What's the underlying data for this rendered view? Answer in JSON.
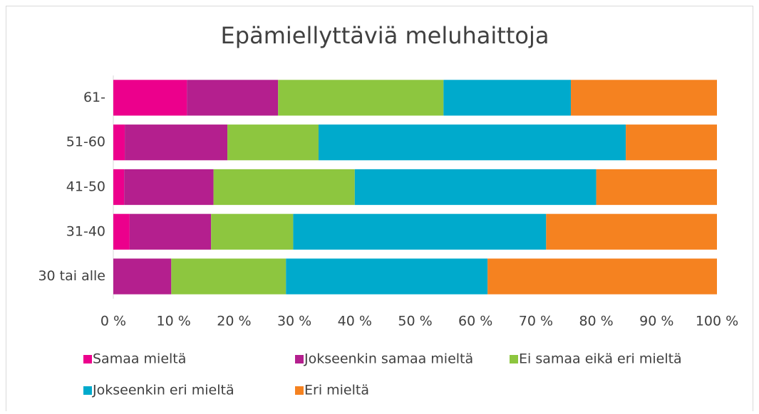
{
  "chart_data": {
    "type": "stacked_barh",
    "title": "Epämiellyttäviä meluhaittoja",
    "categories": [
      "61-",
      "51-60",
      "41-50",
      "31-40",
      "30 tai alle"
    ],
    "series": [
      {
        "name": "Samaa mieltä",
        "color": "#ec008c",
        "values": [
          12.2,
          1.9,
          1.8,
          2.7,
          0
        ]
      },
      {
        "name": "Jokseenkin samaa mieltä",
        "color": "#b41f8e",
        "values": [
          15.1,
          17.0,
          14.8,
          13.5,
          9.6
        ]
      },
      {
        "name": "Ei samaa eikä eri mieltä",
        "color": "#8dc63f",
        "values": [
          27.4,
          15.1,
          23.4,
          13.6,
          19.0
        ]
      },
      {
        "name": "Jokseenkin eri mieltä",
        "color": "#00aacc",
        "values": [
          21.1,
          50.9,
          40.0,
          41.9,
          33.4
        ]
      },
      {
        "name": "Eri mieltä",
        "color": "#f58220",
        "values": [
          24.2,
          15.1,
          20.0,
          28.3,
          38.0
        ]
      }
    ],
    "xlim": [
      0,
      100
    ],
    "xticks": [
      {
        "value": 0,
        "label": "0 %"
      },
      {
        "value": 10,
        "label": "10 %"
      },
      {
        "value": 20,
        "label": "20 %"
      },
      {
        "value": 30,
        "label": "30 %"
      },
      {
        "value": 40,
        "label": "40 %"
      },
      {
        "value": 50,
        "label": "50 %"
      },
      {
        "value": 60,
        "label": "60 %"
      },
      {
        "value": 70,
        "label": "70 %"
      },
      {
        "value": 80,
        "label": "80 %"
      },
      {
        "value": 90,
        "label": "90 %"
      },
      {
        "value": 100,
        "label": "100 %"
      }
    ],
    "legend": "bottom"
  }
}
